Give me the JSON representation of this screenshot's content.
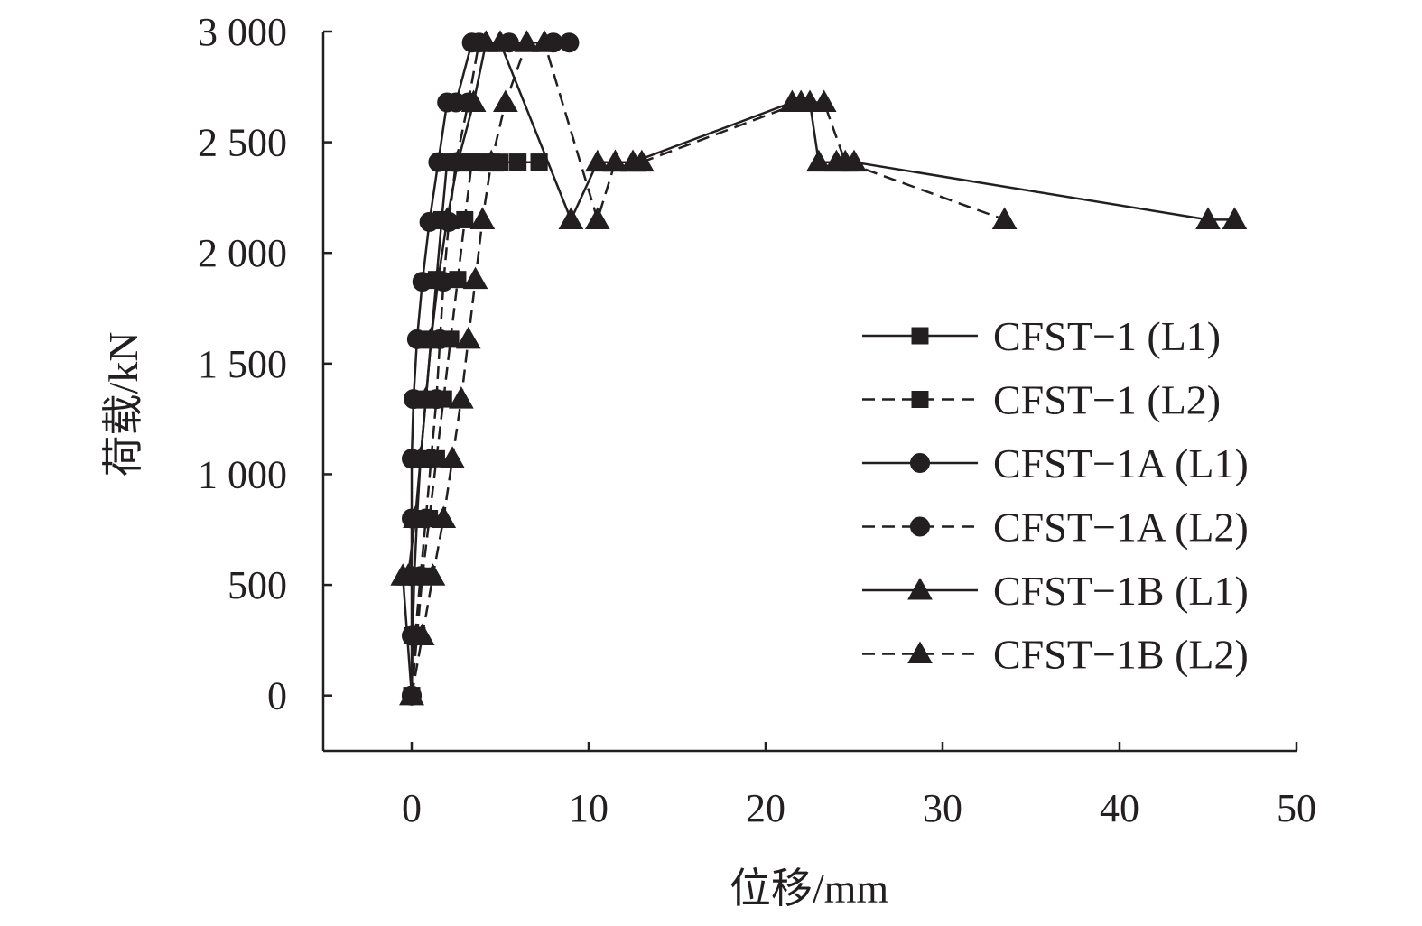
{
  "chart_data": {
    "type": "line",
    "xlabel": "位移/mm",
    "ylabel": "荷载/kN",
    "xlim": [
      -5,
      50
    ],
    "ylim": [
      -250,
      3000
    ],
    "x_ticks": [
      0,
      10,
      20,
      30,
      40,
      50
    ],
    "x_tick_labels": [
      "0",
      "10",
      "20",
      "30",
      "40",
      "50"
    ],
    "y_ticks": [
      0,
      500,
      1000,
      1500,
      2000,
      2500,
      3000
    ],
    "y_tick_labels": [
      "0",
      "500",
      "1 000",
      "1 500",
      "2 000",
      "2 500",
      "3 000"
    ],
    "legend_position": "right",
    "grid": false,
    "series": [
      {
        "name": "CFST−1 (L1)",
        "marker": "square",
        "dash": "solid",
        "x": [
          0,
          0.05,
          0.15,
          0.3,
          0.5,
          0.8,
          1.1,
          1.4,
          1.7,
          2.0,
          2.3,
          2.6,
          3.0,
          3.6,
          4.5,
          6.0,
          7.2
        ],
        "y": [
          0,
          270,
          540,
          800,
          1070,
          1340,
          1610,
          1880,
          2150,
          2410,
          2410,
          2410,
          2410,
          2410,
          2410,
          2410,
          2410
        ]
      },
      {
        "name": "CFST−1 (L2)",
        "marker": "square",
        "dash": "dashed",
        "x": [
          0,
          0.3,
          0.6,
          1.0,
          1.4,
          1.8,
          2.2,
          2.6,
          3.0,
          3.4,
          4.0,
          5.0,
          6.0,
          7.2
        ],
        "y": [
          0,
          270,
          540,
          800,
          1070,
          1340,
          1610,
          1880,
          2150,
          2410,
          2410,
          2410,
          2410,
          2410
        ]
      },
      {
        "name": "CFST−1A (L1)",
        "marker": "circle",
        "dash": "solid",
        "x": [
          0,
          0,
          0,
          0,
          0,
          0.1,
          0.3,
          0.6,
          1.0,
          1.5,
          2.0,
          2.5,
          3.4,
          5.5,
          8.0,
          8.9
        ],
        "y": [
          0,
          270,
          540,
          800,
          1070,
          1340,
          1610,
          1870,
          2140,
          2410,
          2680,
          2680,
          2950,
          2950,
          2950,
          2950
        ]
      },
      {
        "name": "CFST−1A (L2)",
        "marker": "circle",
        "dash": "dashed",
        "x": [
          0,
          0.2,
          0.5,
          0.8,
          1.1,
          1.4,
          1.6,
          1.8,
          2.1,
          2.5,
          3.2,
          3.8
        ],
        "y": [
          0,
          270,
          540,
          800,
          1070,
          1340,
          1610,
          1870,
          2140,
          2410,
          2680,
          2950
        ]
      },
      {
        "name": "CFST−1B (L1)",
        "marker": "triangle",
        "dash": "solid",
        "x": [
          0,
          -0.5,
          -0.2,
          0.2,
          0.5,
          0.8,
          1.1,
          1.5,
          2.0,
          2.6,
          3.5,
          4.2,
          5.0,
          9.0,
          10.5,
          11.5,
          12.5,
          21.5,
          22.5,
          23.0,
          24.0,
          25.0,
          45.0,
          46.5
        ],
        "y": [
          0,
          540,
          540,
          800,
          1070,
          1340,
          1610,
          1880,
          2150,
          2410,
          2680,
          2950,
          2950,
          2150,
          2410,
          2410,
          2410,
          2680,
          2680,
          2410,
          2410,
          2410,
          2150,
          2150
        ]
      },
      {
        "name": "CFST−1B (L2)",
        "marker": "triangle",
        "dash": "dashed",
        "x": [
          0,
          0.6,
          1.2,
          1.8,
          2.3,
          2.8,
          3.2,
          3.6,
          4.0,
          4.5,
          5.3,
          6.5,
          7.5,
          10.5,
          11.5,
          12.5,
          13.0,
          22.0,
          23.3,
          24.5,
          33.5
        ],
        "y": [
          0,
          270,
          540,
          800,
          1070,
          1340,
          1610,
          1880,
          2150,
          2410,
          2680,
          2950,
          2950,
          2150,
          2410,
          2410,
          2410,
          2680,
          2680,
          2410,
          2150
        ]
      }
    ]
  }
}
